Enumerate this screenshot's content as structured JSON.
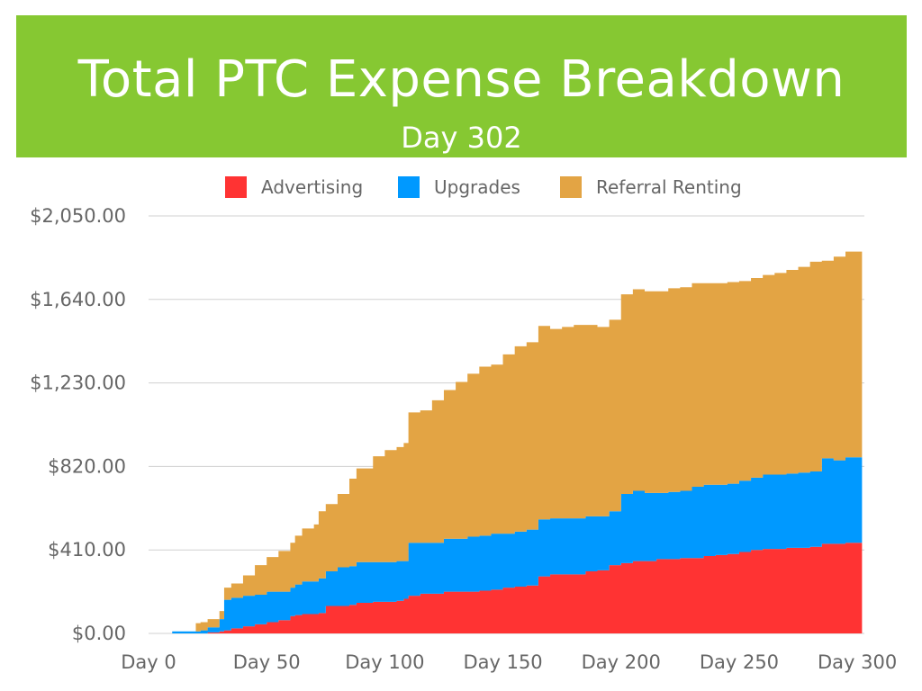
{
  "header": {
    "title": "Total PTC Expense Breakdown",
    "subtitle": "Day 302"
  },
  "colors": {
    "banner": "#86c832",
    "advertising": "#ff3333",
    "upgrades": "#0099ff",
    "referral_renting": "#e3a444",
    "axis_text": "#666666",
    "grid": "#d0d0d0"
  },
  "chart_data": {
    "type": "area",
    "stacked": true,
    "title": "Total PTC Expense Breakdown",
    "subtitle": "Day 302",
    "xlabel": "",
    "ylabel": "",
    "x_ticks": [
      "Day 0",
      "Day 50",
      "Day 100",
      "Day 150",
      "Day 200",
      "Day 250",
      "Day 300"
    ],
    "y_ticks": [
      "$0.00",
      "$410.00",
      "$820.00",
      "$1,230.00",
      "$1,640.00",
      "$2,050.00"
    ],
    "xlim": [
      0,
      302
    ],
    "ylim": [
      0,
      2050
    ],
    "grid": true,
    "legend_position": "top",
    "x": [
      0,
      10,
      20,
      22,
      25,
      30,
      32,
      35,
      40,
      45,
      50,
      55,
      60,
      62,
      65,
      70,
      72,
      75,
      80,
      85,
      88,
      90,
      95,
      100,
      105,
      108,
      110,
      115,
      120,
      125,
      130,
      135,
      140,
      145,
      150,
      155,
      160,
      165,
      170,
      175,
      180,
      185,
      190,
      195,
      200,
      205,
      210,
      215,
      220,
      225,
      230,
      235,
      240,
      245,
      250,
      255,
      260,
      265,
      270,
      275,
      280,
      285,
      290,
      295,
      302
    ],
    "series": [
      {
        "name": "Advertising",
        "values": [
          0,
          0,
          0,
          0,
          5,
          10,
          15,
          25,
          35,
          45,
          55,
          65,
          85,
          90,
          95,
          95,
          100,
          135,
          135,
          140,
          150,
          150,
          155,
          155,
          160,
          170,
          185,
          195,
          195,
          205,
          205,
          205,
          210,
          215,
          225,
          230,
          235,
          280,
          290,
          290,
          290,
          305,
          310,
          335,
          345,
          355,
          355,
          365,
          365,
          370,
          370,
          380,
          385,
          390,
          400,
          410,
          415,
          415,
          420,
          420,
          425,
          440,
          440,
          445,
          450
        ]
      },
      {
        "name": "Upgrades",
        "values": [
          0,
          10,
          10,
          15,
          25,
          60,
          150,
          150,
          150,
          145,
          150,
          140,
          140,
          150,
          160,
          160,
          170,
          170,
          190,
          190,
          200,
          200,
          195,
          195,
          195,
          185,
          260,
          250,
          250,
          260,
          260,
          270,
          270,
          275,
          265,
          270,
          275,
          280,
          275,
          275,
          275,
          270,
          265,
          265,
          340,
          345,
          335,
          325,
          330,
          330,
          350,
          350,
          345,
          345,
          350,
          355,
          365,
          365,
          365,
          370,
          370,
          420,
          410,
          420,
          430
        ]
      },
      {
        "name": "Referral Renting",
        "values": [
          0,
          0,
          40,
          40,
          40,
          40,
          60,
          70,
          100,
          145,
          170,
          200,
          220,
          240,
          260,
          280,
          330,
          330,
          360,
          430,
          460,
          460,
          520,
          550,
          560,
          580,
          640,
          650,
          700,
          730,
          770,
          800,
          830,
          830,
          880,
          910,
          920,
          950,
          930,
          940,
          950,
          940,
          930,
          940,
          980,
          990,
          990,
          990,
          1000,
          1000,
          1000,
          990,
          990,
          990,
          980,
          980,
          980,
          990,
          1000,
          1010,
          1030,
          970,
          1000,
          1010,
          1000
        ]
      }
    ]
  }
}
